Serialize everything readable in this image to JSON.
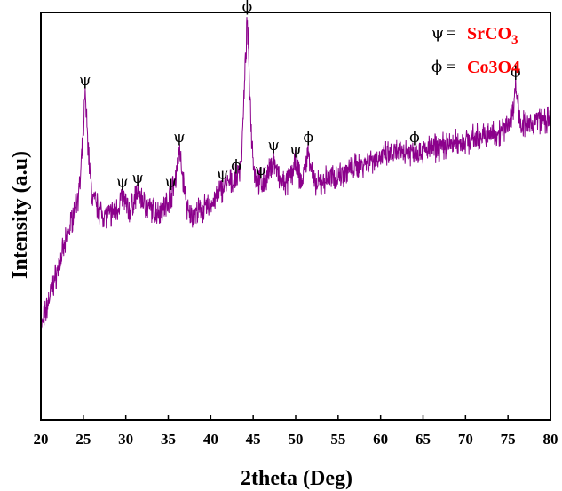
{
  "chart_data": {
    "type": "line",
    "xlabel": "2theta (Deg)",
    "ylabel": "Intensity (a.u)",
    "xlim": [
      20,
      80
    ],
    "ylim": [
      0,
      100
    ],
    "xticks": [
      20,
      25,
      30,
      35,
      40,
      45,
      50,
      55,
      60,
      65,
      70,
      75,
      80
    ],
    "grid": false,
    "line_color": "#8b008b",
    "legend": {
      "placement": "top-right",
      "entries": [
        {
          "symbol": "ψ",
          "eq": "=",
          "formula": "SrCO",
          "sub": "3",
          "color": "#ff0000"
        },
        {
          "symbol": "ϕ",
          "eq": "=",
          "formula": "Co3O4",
          "color": "#ff0000"
        }
      ]
    },
    "profile": [
      [
        20,
        22
      ],
      [
        21,
        30
      ],
      [
        22,
        37
      ],
      [
        23,
        44
      ],
      [
        24,
        52
      ],
      [
        24.6,
        57
      ],
      [
        25.0,
        70
      ],
      [
        25.2,
        80
      ],
      [
        25.6,
        66
      ],
      [
        26.0,
        55
      ],
      [
        27,
        51
      ],
      [
        28,
        50
      ],
      [
        29,
        52
      ],
      [
        29.6,
        55
      ],
      [
        30.4,
        51
      ],
      [
        31.4,
        56
      ],
      [
        32.5,
        52
      ],
      [
        33.5,
        51
      ],
      [
        34.5,
        52
      ],
      [
        35.3,
        55
      ],
      [
        35.8,
        59
      ],
      [
        36.3,
        66
      ],
      [
        36.8,
        58
      ],
      [
        37.4,
        50
      ],
      [
        38.5,
        51
      ],
      [
        39.5,
        52
      ],
      [
        40.5,
        54
      ],
      [
        41.4,
        57
      ],
      [
        42.2,
        58
      ],
      [
        43.0,
        59
      ],
      [
        43.6,
        63
      ],
      [
        44.3,
        98
      ],
      [
        44.8,
        70
      ],
      [
        45.2,
        60
      ],
      [
        45.9,
        58
      ],
      [
        46.6,
        59
      ],
      [
        47.4,
        64
      ],
      [
        48.2,
        58
      ],
      [
        49.0,
        58
      ],
      [
        50.0,
        63
      ],
      [
        50.7,
        58
      ],
      [
        51.5,
        66
      ],
      [
        52.3,
        57
      ],
      [
        53.5,
        59
      ],
      [
        55,
        60
      ],
      [
        57,
        62
      ],
      [
        59,
        64
      ],
      [
        61,
        65
      ],
      [
        63,
        66
      ],
      [
        65,
        66
      ],
      [
        67,
        67
      ],
      [
        69,
        68
      ],
      [
        71,
        69
      ],
      [
        73,
        70
      ],
      [
        74.5,
        71
      ],
      [
        75.5,
        75
      ],
      [
        75.9,
        82
      ],
      [
        76.5,
        73
      ],
      [
        77.5,
        72
      ],
      [
        78.5,
        74
      ],
      [
        80,
        73
      ]
    ],
    "peaks": [
      {
        "x": 25.2,
        "y": 80,
        "phase": "SrCO3",
        "marker": "ψ"
      },
      {
        "x": 29.6,
        "y": 55,
        "phase": "SrCO3",
        "marker": "ψ"
      },
      {
        "x": 31.4,
        "y": 56,
        "phase": "SrCO3",
        "marker": "ψ"
      },
      {
        "x": 35.3,
        "y": 55,
        "phase": "SrCO3",
        "marker": "ψ"
      },
      {
        "x": 36.3,
        "y": 66,
        "phase": "SrCO3",
        "marker": "ψ"
      },
      {
        "x": 41.4,
        "y": 57,
        "phase": "SrCO3",
        "marker": "ψ"
      },
      {
        "x": 43.0,
        "y": 59,
        "phase": "Co3O4",
        "marker": "ϕ"
      },
      {
        "x": 44.3,
        "y": 98,
        "phase": "Co3O4",
        "marker": "ϕ"
      },
      {
        "x": 45.9,
        "y": 58,
        "phase": "SrCO3",
        "marker": "ψ"
      },
      {
        "x": 47.4,
        "y": 64,
        "phase": "SrCO3",
        "marker": "ψ"
      },
      {
        "x": 50.0,
        "y": 63,
        "phase": "SrCO3",
        "marker": "ψ"
      },
      {
        "x": 51.5,
        "y": 66,
        "phase": "Co3O4",
        "marker": "ϕ"
      },
      {
        "x": 64.0,
        "y": 66,
        "phase": "Co3O4",
        "marker": "ϕ"
      },
      {
        "x": 75.9,
        "y": 82,
        "phase": "Co3O4",
        "marker": "ϕ"
      }
    ]
  }
}
